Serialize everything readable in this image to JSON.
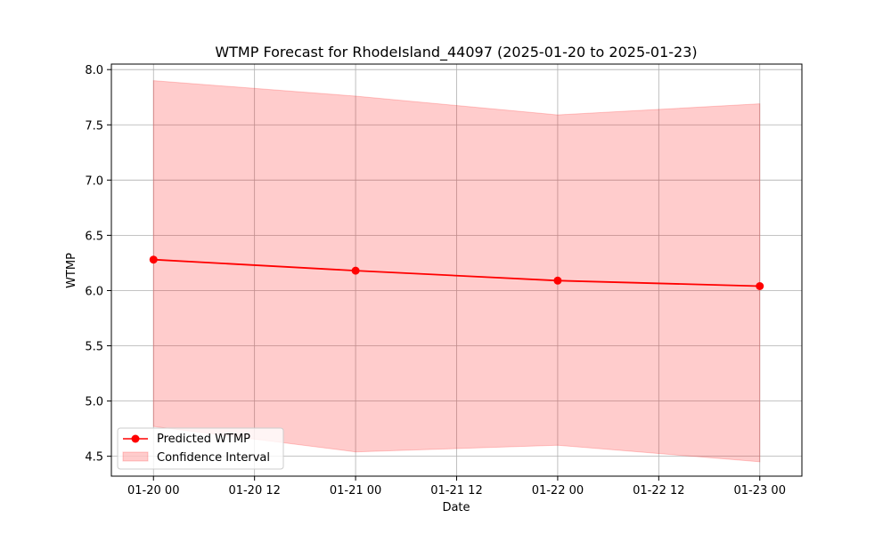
{
  "chart_data": {
    "type": "line",
    "title": "WTMP Forecast for RhodeIsland_44097 (2025-01-20 to 2025-01-23)",
    "xlabel": "Date",
    "ylabel": "WTMP",
    "x": [
      "2025-01-20 00:00",
      "2025-01-21 00:00",
      "2025-01-22 00:00",
      "2025-01-23 00:00"
    ],
    "xlim": [
      "2025-01-19 19:00",
      "2025-01-23 05:00"
    ],
    "xticks": [
      {
        "value": "2025-01-20 00:00",
        "label": "01-20 00"
      },
      {
        "value": "2025-01-20 12:00",
        "label": "01-20 12"
      },
      {
        "value": "2025-01-21 00:00",
        "label": "01-21 00"
      },
      {
        "value": "2025-01-21 12:00",
        "label": "01-21 12"
      },
      {
        "value": "2025-01-22 00:00",
        "label": "01-22 00"
      },
      {
        "value": "2025-01-22 12:00",
        "label": "01-22 12"
      },
      {
        "value": "2025-01-23 00:00",
        "label": "01-23 00"
      }
    ],
    "ylim": [
      4.32,
      8.05
    ],
    "yticks": [
      {
        "value": 4.5,
        "label": "4.5"
      },
      {
        "value": 5.0,
        "label": "5.0"
      },
      {
        "value": 5.5,
        "label": "5.5"
      },
      {
        "value": 6.0,
        "label": "6.0"
      },
      {
        "value": 6.5,
        "label": "6.5"
      },
      {
        "value": 7.0,
        "label": "7.0"
      },
      {
        "value": 7.5,
        "label": "7.5"
      },
      {
        "value": 8.0,
        "label": "8.0"
      }
    ],
    "series": [
      {
        "name": "Predicted WTMP",
        "kind": "line",
        "color": "#ff0000",
        "values": [
          6.28,
          6.18,
          6.09,
          6.04
        ]
      },
      {
        "name": "Confidence Interval",
        "kind": "band",
        "color": "#ff0000",
        "lower": [
          4.77,
          4.54,
          4.6,
          4.45
        ],
        "upper": [
          7.9,
          7.76,
          7.59,
          7.69
        ]
      }
    ],
    "grid": true,
    "legend": "lower-left"
  }
}
